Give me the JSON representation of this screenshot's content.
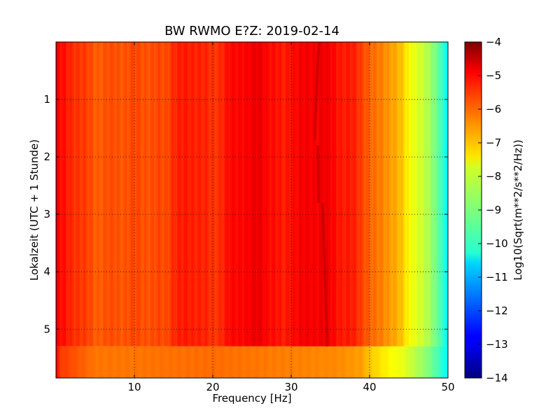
{
  "chart_data": {
    "type": "heatmap",
    "title": "BW RWMO E?Z: 2019-02-14",
    "xlabel": "Frequency [Hz]",
    "ylabel": "Lokalzeit (UTC + 1 Stunde)",
    "colorbar_label": "Log10(Sqrt(m**2/s**2/Hz))",
    "xlim": [
      0,
      50
    ],
    "ylim": [
      5.85,
      0
    ],
    "y_inverted": true,
    "x_ticks": [
      10,
      20,
      30,
      40,
      50
    ],
    "y_ticks": [
      1,
      2,
      3,
      4,
      5
    ],
    "colorbar_ticks": [
      -4,
      -5,
      -6,
      -7,
      -8,
      -9,
      -10,
      -11,
      -12,
      -13,
      -14
    ],
    "colorbar_range": [
      -14,
      -4
    ],
    "colormap": "jet",
    "grid": true,
    "grid_style": "dotted",
    "colorbar_position": "right",
    "data_end_time": 5.3,
    "dominant_line": {
      "description": "strong narrow spectral line drifting in frequency",
      "segments": [
        {
          "t_start": 0.0,
          "t_end": 0.3,
          "f_start": 33.6,
          "f_end": 33.4
        },
        {
          "t_start": 0.3,
          "t_end": 1.7,
          "f_start": 33.4,
          "f_end": 33.0
        },
        {
          "t_start": 1.8,
          "t_end": 2.8,
          "f_start": 33.4,
          "f_end": 33.5
        },
        {
          "t_start": 2.8,
          "t_end": 5.3,
          "f_start": 34.0,
          "f_end": 34.6
        }
      ],
      "value": -4.8
    },
    "spectrum_profile": {
      "frequencies": [
        0,
        0.5,
        2,
        5,
        10,
        14,
        15,
        18,
        20,
        22,
        24,
        26,
        28,
        29,
        30,
        32,
        34,
        36,
        38,
        39.5,
        40.5,
        42,
        43,
        44,
        45,
        46,
        47,
        48,
        49,
        50
      ],
      "values": [
        -5.0,
        -5.4,
        -5.6,
        -6.1,
        -6.0,
        -6.0,
        -5.6,
        -5.5,
        -5.8,
        -5.4,
        -5.2,
        -5.1,
        -5.4,
        -5.6,
        -5.3,
        -5.2,
        -5.1,
        -5.4,
        -5.6,
        -6.0,
        -6.4,
        -6.6,
        -6.8,
        -7.2,
        -7.7,
        -8.0,
        -8.4,
        -8.8,
        -9.4,
        -10.3
      ]
    },
    "post_end_spectrum_profile": {
      "frequencies": [
        0,
        0.5,
        5,
        10,
        20,
        30,
        36,
        39,
        40,
        41,
        42,
        43,
        44,
        45,
        46,
        47,
        48,
        49,
        50
      ],
      "values": [
        -5.2,
        -5.8,
        -6.4,
        -6.4,
        -6.3,
        -6.5,
        -6.6,
        -6.8,
        -7.2,
        -7.4,
        -7.6,
        -7.8,
        -7.9,
        -8.2,
        -8.5,
        -8.8,
        -9.2,
        -9.7,
        -10.3
      ]
    }
  }
}
